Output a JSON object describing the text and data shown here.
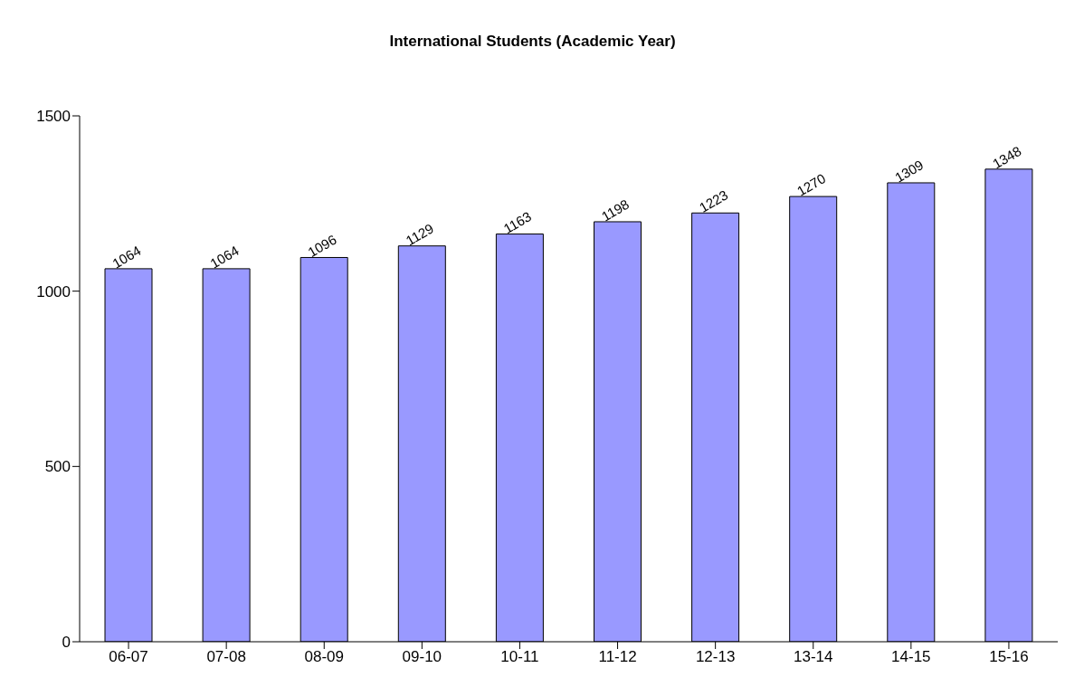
{
  "chart_data": {
    "type": "bar",
    "title": "International Students (Academic Year)",
    "categories": [
      "06-07",
      "07-08",
      "08-09",
      "09-10",
      "10-11",
      "11-12",
      "12-13",
      "13-14",
      "14-15",
      "15-16"
    ],
    "values": [
      1064,
      1064,
      1096,
      1129,
      1163,
      1198,
      1223,
      1270,
      1309,
      1348
    ],
    "color": "#9999ff",
    "ylim": [
      0,
      1500
    ],
    "yticks": [
      0,
      500,
      1000,
      1500
    ],
    "grid": false,
    "data_labels": true
  }
}
